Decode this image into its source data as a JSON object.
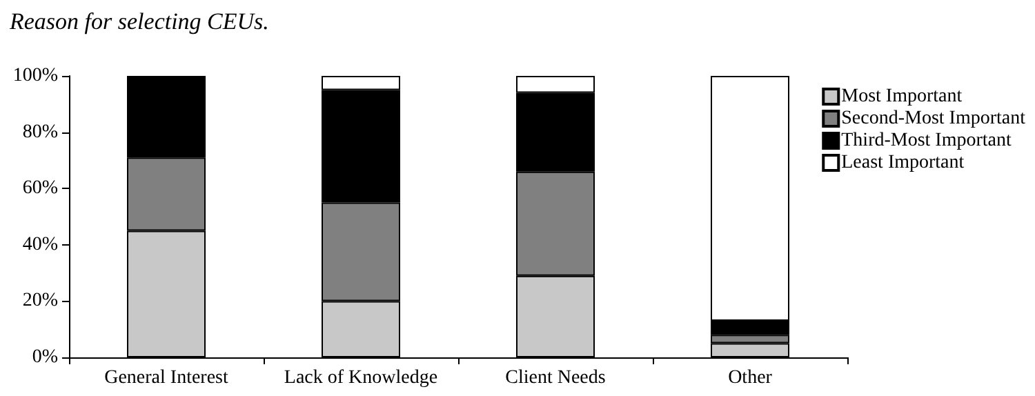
{
  "chart_data": {
    "type": "bar",
    "title": "Reason for selecting CEUs.",
    "categories": [
      "General Interest",
      "Lack of Knowledge",
      "Client Needs",
      "Other"
    ],
    "stacked": true,
    "ylim": [
      0,
      100
    ],
    "yticks": [
      {
        "value": 0,
        "label": "0%"
      },
      {
        "value": 20,
        "label": "20%"
      },
      {
        "value": 40,
        "label": "40%"
      },
      {
        "value": 60,
        "label": "60%"
      },
      {
        "value": 80,
        "label": "80%"
      },
      {
        "value": 100,
        "label": "100%"
      }
    ],
    "grid": false,
    "legend": "right",
    "series": [
      {
        "name": "Most Important",
        "color": "#c8c8c8",
        "values": [
          45,
          20,
          29,
          5
        ]
      },
      {
        "name": "Second-Most Important",
        "color": "#808080",
        "values": [
          26,
          35,
          37,
          3
        ]
      },
      {
        "name": "Third-Most Important",
        "color": "#000000",
        "values": [
          28,
          40,
          28,
          5
        ]
      },
      {
        "name": "Least Important",
        "color": "#ffffff",
        "values": [
          1,
          5,
          6,
          87
        ]
      }
    ]
  }
}
